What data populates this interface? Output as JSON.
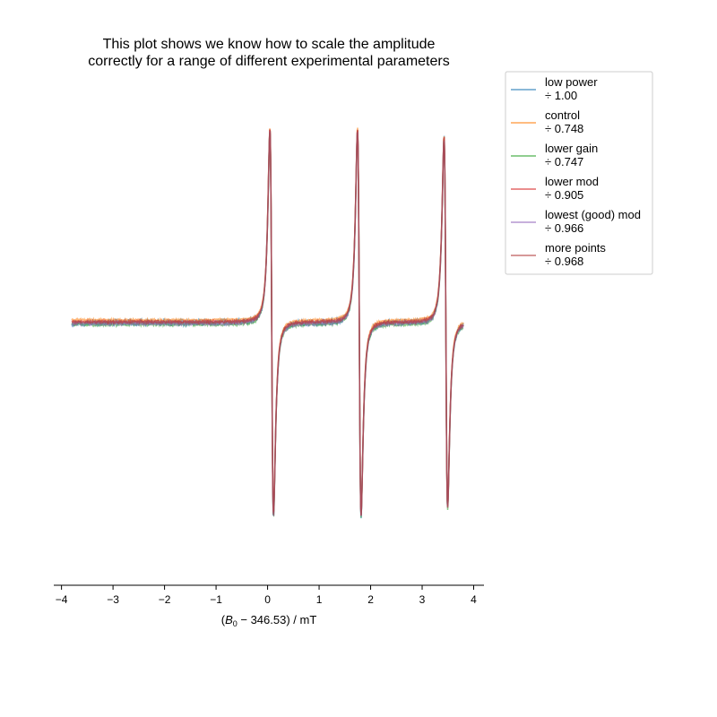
{
  "chart_data": {
    "type": "line",
    "title": [
      "This plot shows we know how to scale the amplitude",
      "correctly for a range of different experimental parameters"
    ],
    "xlabel_parts": {
      "open": "(",
      "symbol": "B",
      "subscript": "0",
      "rest": " − 346.53) / mT"
    },
    "xlim": [
      -4.15,
      4.2
    ],
    "ylim": [
      -1.0,
      1.0
    ],
    "xticks": [
      -4,
      -3,
      -2,
      -1,
      0,
      1,
      2,
      3,
      4
    ],
    "xtick_labels": [
      "−4",
      "−3",
      "−2",
      "−1",
      "0",
      "1",
      "2",
      "3",
      "4"
    ],
    "y_axis_visible": false,
    "grid": false,
    "legend_placement": "outside-top-right",
    "x_range": [
      -3.8,
      3.8
    ],
    "lines": [
      {
        "center": 0.08,
        "amplitude": 1.0
      },
      {
        "center": 1.78,
        "amplitude": 1.0
      },
      {
        "center": 3.46,
        "amplitude": 0.96
      }
    ],
    "series": [
      {
        "name_line1": "low power",
        "name_line2": "÷ 1.00",
        "color": "#1f77b4",
        "noise": 0.015,
        "offset": 0.0
      },
      {
        "name_line1": "control",
        "name_line2": "÷ 0.748",
        "color": "#ff7f0e",
        "noise": 0.004,
        "offset": 0.012
      },
      {
        "name_line1": "lower gain",
        "name_line2": "÷ 0.747",
        "color": "#2ca02c",
        "noise": 0.006,
        "offset": -0.008
      },
      {
        "name_line1": "lower mod",
        "name_line2": "÷ 0.905",
        "color": "#d62728",
        "noise": 0.005,
        "offset": 0.004
      },
      {
        "name_line1": "lowest (good) mod",
        "name_line2": "÷ 0.966",
        "color": "#9467bd",
        "noise": 0.006,
        "offset": -0.004
      },
      {
        "name_line1": "more points",
        "name_line2": "÷ 0.968",
        "color": "#b03a3a",
        "noise": 0.005,
        "offset": 0.002
      }
    ]
  }
}
